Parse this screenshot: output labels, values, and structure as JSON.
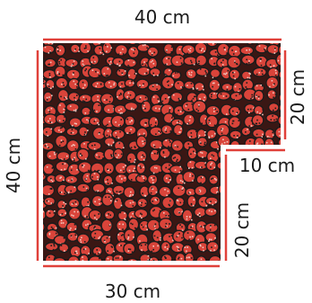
{
  "diagram": {
    "shape": "L-shaped region filled with a red and black pebble texture",
    "dimensions": {
      "top": "40 cm",
      "right_upper": "20 cm",
      "notch_horizontal": "10 cm",
      "right_lower": "20 cm",
      "bottom": "30 cm",
      "left": "40 cm"
    },
    "colors": {
      "measure_line": "#e0413a",
      "pebble_red": "#d9443a",
      "pebble_dark": "#1b1b1b",
      "pebble_light": "#f2c7bf",
      "label_text": "#1a1a1a"
    }
  }
}
